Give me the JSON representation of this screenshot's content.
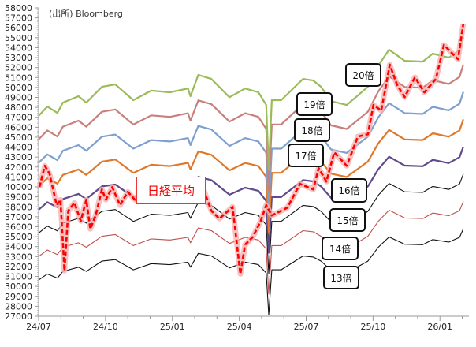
{
  "chart_data": {
    "type": "line",
    "source_note": "(出所)  Bloomberg",
    "xlabel": "",
    "ylabel": "",
    "x_unit": "months since 2024/07",
    "xlim": [
      0,
      19.3
    ],
    "x_ticks": [
      {
        "x": 0,
        "label": "24/07"
      },
      {
        "x": 3,
        "label": "24/10"
      },
      {
        "x": 6,
        "label": "25/01"
      },
      {
        "x": 9,
        "label": "25/04"
      },
      {
        "x": 12,
        "label": "25/07"
      },
      {
        "x": 15,
        "label": "25/10"
      },
      {
        "x": 18,
        "label": "26/01"
      }
    ],
    "ylim": [
      27000,
      58000
    ],
    "y_ticks": [
      "27000",
      "28000",
      "29000",
      "30000",
      "31000",
      "32000",
      "33000",
      "34000",
      "35000",
      "36000",
      "37000",
      "38000",
      "39000",
      "40000",
      "41000",
      "42000",
      "43000",
      "44000",
      "45000",
      "46000",
      "47000",
      "48000",
      "49000",
      "50000",
      "51000",
      "52000",
      "53000",
      "54000",
      "55000",
      "56000",
      "57000",
      "58000"
    ],
    "grid": false,
    "nikkei": {
      "name": "日経平均",
      "color": "#ff0000",
      "x": [
        0.04,
        0.28,
        0.49,
        0.81,
        0.98,
        1.16,
        1.33,
        1.61,
        1.89,
        2.14,
        2.32,
        2.56,
        2.84,
        3.02,
        3.3,
        3.65,
        4.0,
        4.32,
        4.95,
        5.47,
        6.04,
        6.7,
        7.4,
        7.75,
        8.11,
        8.7,
        9.05,
        9.26,
        9.61,
        9.96,
        10.21,
        10.46,
        11.16,
        11.72,
        12.32,
        12.56,
        12.91,
        13.26,
        13.82,
        14.32,
        14.77,
        15.02,
        15.37,
        15.75,
        16.07,
        16.42,
        16.88,
        17.3,
        17.82,
        18.18,
        18.63,
        18.81,
        19.05
      ],
      "y": [
        39980,
        42130,
        41330,
        38160,
        38710,
        31570,
        37600,
        38400,
        36570,
        38710,
        35780,
        37130,
        39750,
        38710,
        39980,
        38160,
        39510,
        38710,
        39000,
        38600,
        39200,
        38800,
        39750,
        37600,
        36810,
        38000,
        31250,
        34190,
        34980,
        36570,
        38160,
        37130,
        37920,
        40300,
        39750,
        41890,
        40540,
        43480,
        42130,
        45060,
        45300,
        48240,
        47680,
        52290,
        50300,
        49030,
        51020,
        49510,
        50860,
        54270,
        53240,
        52840,
        56410
      ]
    },
    "eps_basis": {
      "x": [
        0,
        0.39,
        0.84,
        1.09,
        1.79,
        2.14,
        2.84,
        3.44,
        4.25,
        5.05,
        5.89,
        6.7,
        6.81,
        7.16,
        7.75,
        8.56,
        9.26,
        9.86,
        10.21,
        10.32,
        10.46,
        10.88,
        11.86,
        12.32,
        12.67,
        13.12,
        13.82,
        14.77,
        15.23,
        15.72,
        16.42,
        17.23,
        17.68,
        18.39,
        18.88,
        19.05
      ],
      "eps": [
        2357,
        2404,
        2372,
        2424,
        2456,
        2424,
        2503,
        2515,
        2436,
        2484,
        2476,
        2495,
        2456,
        2563,
        2543,
        2451,
        2495,
        2476,
        2412,
        2087,
        2436,
        2436,
        2543,
        2535,
        2503,
        2431,
        2412,
        2503,
        2610,
        2690,
        2634,
        2630,
        2670,
        2650,
        2687,
        2753
      ]
    },
    "series": [
      {
        "name": "20倍",
        "multiple": 20,
        "color": "#9bbb59",
        "width": 2.2
      },
      {
        "name": "19倍",
        "multiple": 19,
        "color": "#c9807c",
        "width": 2.2
      },
      {
        "name": "18倍",
        "multiple": 18,
        "color": "#7f9fcf",
        "width": 2.2
      },
      {
        "name": "17倍",
        "multiple": 17,
        "color": "#e0782a",
        "width": 2.2
      },
      {
        "name": "16倍",
        "multiple": 16,
        "color": "#604a8b",
        "width": 2.2
      },
      {
        "name": "15倍",
        "multiple": 15,
        "color": "#111111",
        "width": 1.1
      },
      {
        "name": "14倍",
        "multiple": 14,
        "color": "#c0504d",
        "width": 1.1
      },
      {
        "name": "13倍",
        "multiple": 13,
        "color": "#111111",
        "width": 1.1
      }
    ]
  }
}
